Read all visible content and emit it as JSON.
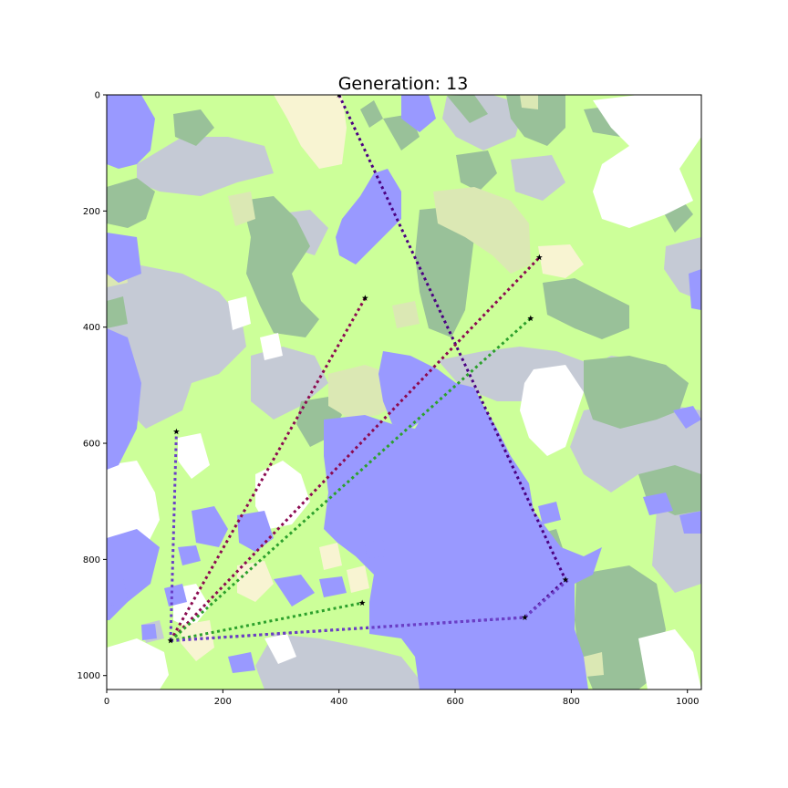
{
  "title": "Generation: 13",
  "map": {
    "extent": {
      "x": [
        0,
        1024
      ],
      "y": [
        0,
        1024
      ]
    },
    "y_inverted": true,
    "x_ticks": [
      "0",
      "200",
      "400",
      "600",
      "800",
      "1000"
    ],
    "y_ticks": [
      "0",
      "200",
      "400",
      "600",
      "800",
      "1000"
    ],
    "terrain_colors": {
      "water": "#9999ff",
      "grassland": "#ccff99",
      "forest": "#99c199",
      "mountain": "#c5cad5",
      "snow": "#ffffff",
      "sand": "#f8f4d2",
      "plains": "#dbe8b4"
    },
    "star_color": "#000000"
  },
  "routes": [
    {
      "color": "#4b0082",
      "points": [
        [
          110,
          940
        ],
        [
          720,
          900
        ],
        [
          790,
          835
        ],
        [
          400,
          0
        ]
      ]
    },
    {
      "color": "#8b0a50",
      "points": [
        [
          110,
          940
        ],
        [
          445,
          350
        ]
      ]
    },
    {
      "color": "#8b0a50",
      "points": [
        [
          110,
          940
        ],
        [
          745,
          280
        ]
      ]
    },
    {
      "color": "#2ca02c",
      "points": [
        [
          110,
          940
        ],
        [
          730,
          385
        ]
      ]
    },
    {
      "color": "#2ca02c",
      "points": [
        [
          110,
          940
        ],
        [
          440,
          875
        ]
      ]
    },
    {
      "color": "#6a3fc8",
      "points": [
        [
          110,
          940
        ],
        [
          120,
          580
        ]
      ]
    },
    {
      "color": "#6a3fc8",
      "points": [
        [
          110,
          940
        ],
        [
          720,
          900
        ],
        [
          795,
          835
        ]
      ]
    }
  ],
  "stars": [
    [
      110,
      940
    ],
    [
      120,
      580
    ],
    [
      445,
      350
    ],
    [
      400,
      0
    ],
    [
      745,
      280
    ],
    [
      730,
      385
    ],
    [
      440,
      875
    ],
    [
      720,
      900
    ],
    [
      790,
      835
    ]
  ]
}
